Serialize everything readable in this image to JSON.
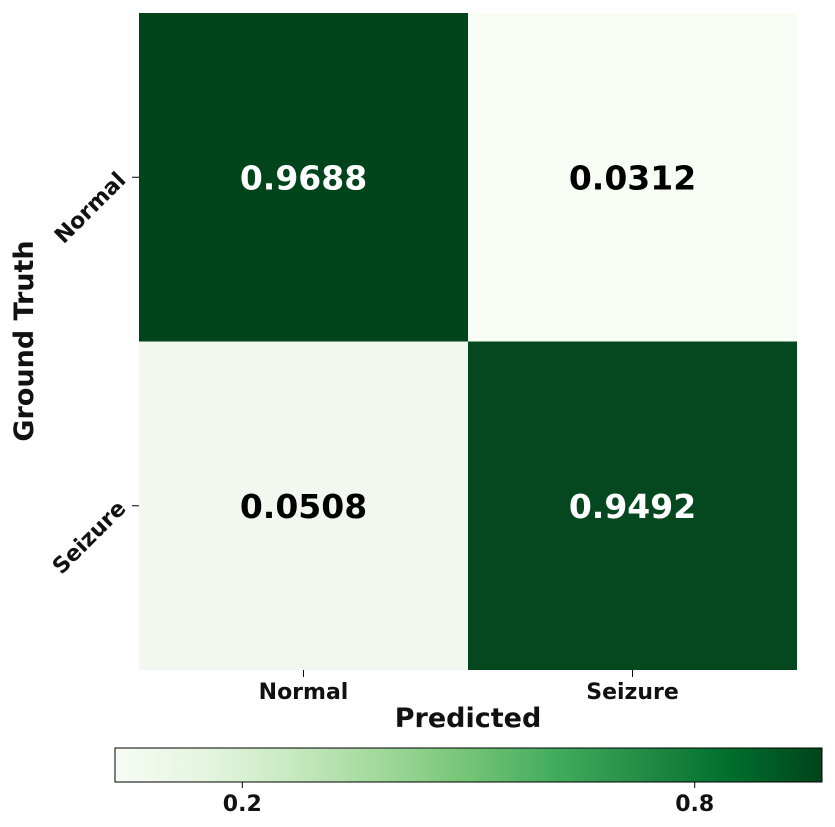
{
  "chart_data": {
    "type": "heatmap",
    "xlabel": "Predicted",
    "ylabel": "Ground Truth",
    "x_categories": [
      "Normal",
      "Seizure"
    ],
    "y_categories": [
      "Normal",
      "Seizure"
    ],
    "values": [
      [
        0.9688,
        0.0312
      ],
      [
        0.0508,
        0.9492
      ]
    ],
    "value_labels": [
      [
        "0.9688",
        "0.0312"
      ],
      [
        "0.0508",
        "0.9492"
      ]
    ],
    "colormap": "Greens",
    "colors": {
      "low": "#f7fcf5",
      "high": "#00441b"
    },
    "colorbar": {
      "orientation": "horizontal",
      "placement": "bottom",
      "range": [
        0.0312,
        0.9688
      ],
      "ticks": [
        0.2,
        0.8
      ],
      "tick_labels": [
        "0.2",
        "0.8"
      ]
    }
  }
}
